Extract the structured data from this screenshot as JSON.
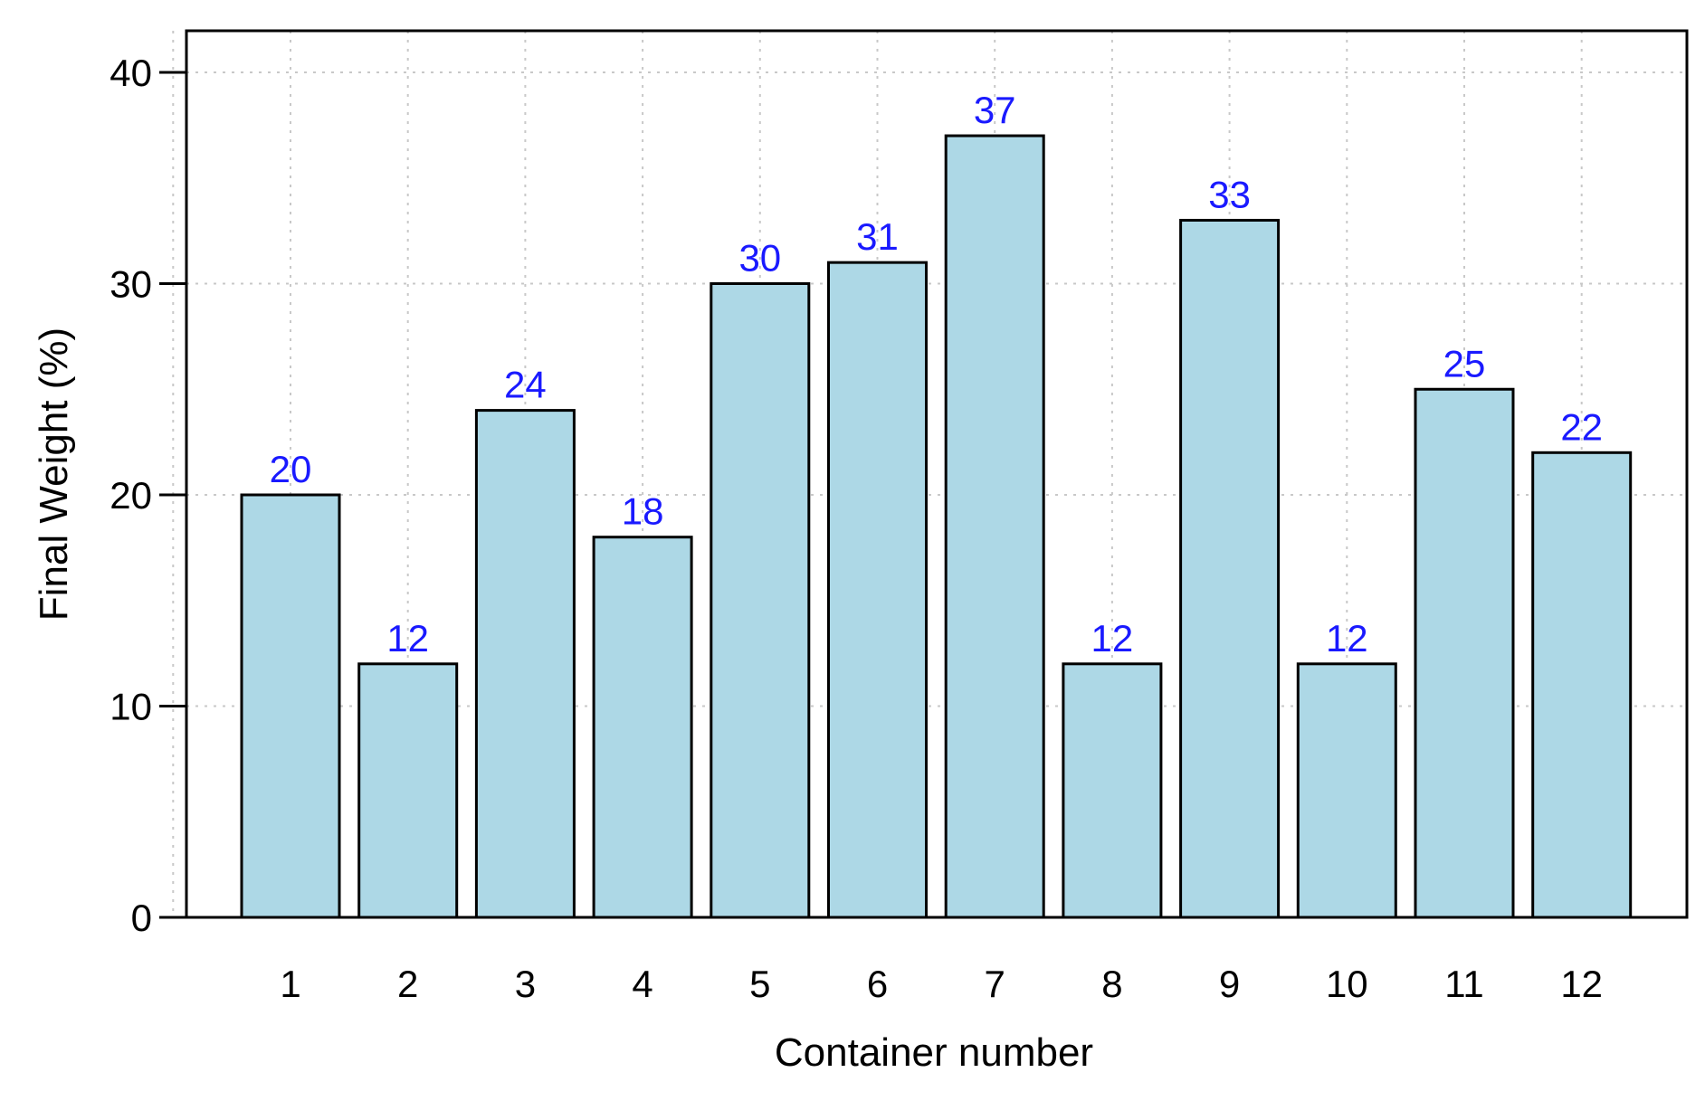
{
  "chart_data": {
    "type": "bar",
    "title": "",
    "xlabel": "Container number",
    "ylabel": "Final Weight (%)",
    "categories": [
      "1",
      "2",
      "3",
      "4",
      "5",
      "6",
      "7",
      "8",
      "9",
      "10",
      "11",
      "12"
    ],
    "values": [
      20,
      12,
      24,
      18,
      30,
      31,
      37,
      12,
      33,
      12,
      25,
      22
    ],
    "data_labels": [
      "20",
      "12",
      "24",
      "18",
      "30",
      "31",
      "37",
      "12",
      "33",
      "12",
      "25",
      "22"
    ],
    "ylim": [
      0,
      42
    ],
    "yticks": [
      0,
      10,
      20,
      30,
      40
    ],
    "ytick_labels": [
      "0",
      "10",
      "20",
      "30",
      "40"
    ],
    "grid": true,
    "legend": "none",
    "colors": {
      "bar_fill": "#add8e6",
      "bar_stroke": "#000000",
      "data_label": "#1a1aff",
      "grid": "#c8c8c8"
    }
  }
}
